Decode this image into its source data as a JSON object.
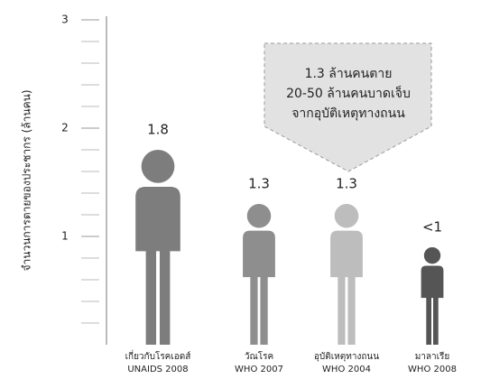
{
  "chart_data": {
    "type": "pictogram",
    "ylabel": "จำนวนการตายของประชากร (ล้านคน)",
    "categories": [
      "เกี่ยวกับโรคเอดส์",
      "วัณโรค",
      "อุบัติเหตุทางถนน",
      "มาลาเรีย"
    ],
    "category_sources": [
      "UNAIDS 2008",
      "WHO 2007",
      "WHO 2004",
      "WHO 2008"
    ],
    "values": [
      1.8,
      1.3,
      1.3,
      0.9
    ],
    "value_labels": [
      "1.8",
      "1.3",
      "1.3",
      "<1"
    ],
    "colors": [
      "#7d7d7d",
      "#8e8e8e",
      "#bdbdbd",
      "#555555"
    ],
    "ylim": [
      0,
      3
    ],
    "yticks": [
      1,
      2,
      3
    ],
    "yminorticks": [
      0.2,
      0.4,
      0.6,
      0.8,
      1.2,
      1.4,
      1.6,
      1.8,
      2.2,
      2.4,
      2.6,
      2.8
    ],
    "annotation": [
      "1.3  ล้านคนตาย",
      "20-50 ล้านคนบาดเจ็บ",
      "จากอุบัติเหตุทางถนน"
    ]
  }
}
